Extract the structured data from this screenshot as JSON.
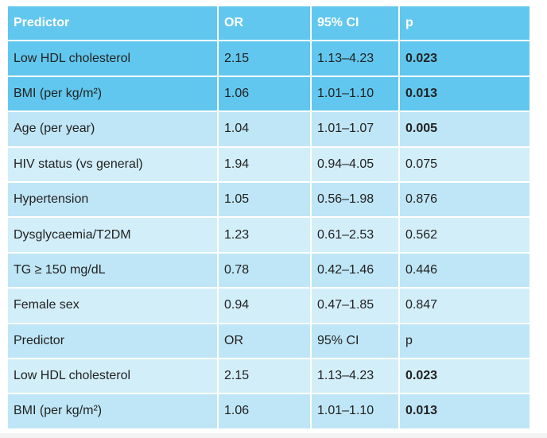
{
  "table": {
    "headers": [
      "Predictor",
      "OR",
      "95% CI",
      "p"
    ],
    "rows": [
      {
        "predictor": "Low HDL cholesterol",
        "or": "2.15",
        "ci": "1.13–4.23",
        "p": "0.023",
        "p_bold": true,
        "style": "highlight"
      },
      {
        "predictor": "BMI (per kg/m²)",
        "or": "1.06",
        "ci": "1.01–1.10",
        "p": "0.013",
        "p_bold": true,
        "style": "highlight"
      },
      {
        "predictor": "Age (per year)",
        "or": "1.04",
        "ci": "1.01–1.07",
        "p": "0.005",
        "p_bold": true,
        "style": "alt"
      },
      {
        "predictor": "HIV status (vs general)",
        "or": "1.94",
        "ci": "0.94–4.05",
        "p": "0.075",
        "p_bold": false,
        "style": "light"
      },
      {
        "predictor": "Hypertension",
        "or": "1.05",
        "ci": "0.56–1.98",
        "p": "0.876",
        "p_bold": false,
        "style": "alt"
      },
      {
        "predictor": "Dysglycaemia/T2DM",
        "or": "1.23",
        "ci": "0.61–2.53",
        "p": "0.562",
        "p_bold": false,
        "style": "light"
      },
      {
        "predictor": "TG ≥ 150 mg/dL",
        "or": "0.78",
        "ci": "0.42–1.46",
        "p": "0.446",
        "p_bold": false,
        "style": "alt"
      },
      {
        "predictor": "Female sex",
        "or": "0.94",
        "ci": "0.47–1.85",
        "p": "0.847",
        "p_bold": false,
        "style": "light"
      },
      {
        "predictor": "Predictor",
        "or": "OR",
        "ci": "95% CI",
        "p": "p",
        "p_bold": false,
        "style": "alt"
      },
      {
        "predictor": "Low HDL cholesterol",
        "or": "2.15",
        "ci": "1.13–4.23",
        "p": "0.023",
        "p_bold": true,
        "style": "light"
      },
      {
        "predictor": "BMI (per kg/m²)",
        "or": "1.06",
        "ci": "1.01–1.10",
        "p": "0.013",
        "p_bold": true,
        "style": "alt"
      }
    ]
  },
  "colors": {
    "header_bg": "#62c7ee",
    "highlight_bg": "#62c7ee",
    "alt_bg": "#bfe6f6",
    "light_bg": "#d2eef9"
  }
}
